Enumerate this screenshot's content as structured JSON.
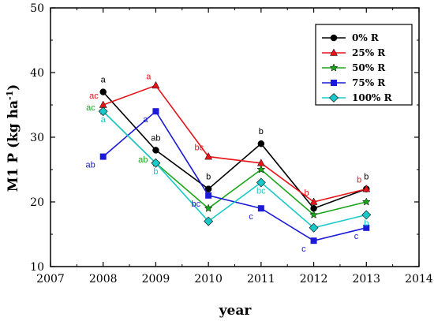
{
  "chart_data": {
    "type": "line",
    "xlabel": "year",
    "ylabel": "M1 P (kg ha",
    "ylabel_sup": "-1",
    "ylabel_end": ")",
    "xlim": [
      2007,
      2014
    ],
    "ylim": [
      10,
      50
    ],
    "xticks": [
      2007,
      2008,
      2009,
      2010,
      2011,
      2012,
      2013,
      2014
    ],
    "yticks": [
      10,
      20,
      30,
      40,
      50
    ],
    "grid": false,
    "legend_position": "top-right",
    "x": [
      2008,
      2009,
      2010,
      2011,
      2012,
      2013
    ],
    "series": [
      {
        "name": "0% R",
        "color": "#000000",
        "marker": "circle",
        "values": [
          37,
          28,
          22,
          29,
          19,
          22
        ],
        "labels": [
          "a",
          "ab",
          "b",
          "b",
          "",
          "b"
        ]
      },
      {
        "name": "25% R",
        "color": "#e8141a",
        "marker": "triangle",
        "values": [
          35,
          38,
          27,
          26,
          20,
          22
        ],
        "labels": [
          "ac",
          "a",
          "bc",
          "",
          "b",
          "b"
        ]
      },
      {
        "name": "50% R",
        "color": "#1aa51a",
        "marker": "star",
        "values": [
          34,
          26,
          19,
          25,
          18,
          20
        ],
        "labels": [
          "ac",
          "ab",
          "",
          "",
          "",
          ""
        ]
      },
      {
        "name": "75% R",
        "color": "#1a1ad8",
        "marker": "square",
        "values": [
          27,
          34,
          21,
          19,
          14,
          16
        ],
        "labels": [
          "ab",
          "a",
          "bc",
          "c",
          "c",
          "c"
        ]
      },
      {
        "name": "100% R",
        "color": "#19c8c8",
        "marker": "diamond",
        "values": [
          34,
          26,
          17,
          23,
          16,
          18
        ],
        "labels": [
          "a",
          "b",
          "",
          "bc",
          "",
          "b"
        ]
      }
    ]
  }
}
